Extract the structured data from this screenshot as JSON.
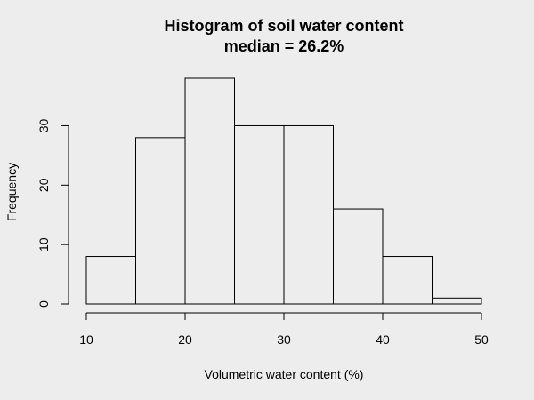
{
  "chart_data": {
    "type": "bar",
    "title": "Histogram of soil water content",
    "subtitle": "median = 26.2%",
    "xlabel": "Volumetric water content (%)",
    "ylabel": "Frequency",
    "bins": [
      {
        "start": 10,
        "end": 15,
        "count": 8
      },
      {
        "start": 15,
        "end": 20,
        "count": 28
      },
      {
        "start": 20,
        "end": 25,
        "count": 38
      },
      {
        "start": 25,
        "end": 30,
        "count": 30
      },
      {
        "start": 30,
        "end": 35,
        "count": 30
      },
      {
        "start": 35,
        "end": 40,
        "count": 16
      },
      {
        "start": 40,
        "end": 45,
        "count": 8
      },
      {
        "start": 45,
        "end": 50,
        "count": 1
      }
    ],
    "xlim": [
      10,
      50
    ],
    "ylim": [
      0,
      38
    ],
    "x_ticks": [
      10,
      20,
      30,
      40,
      50
    ],
    "y_ticks": [
      0,
      10,
      20,
      30
    ],
    "grid": false,
    "legend": "none",
    "colors": {
      "background": "#ededed",
      "bar_stroke": "#000000",
      "bar_fill": "none"
    }
  }
}
